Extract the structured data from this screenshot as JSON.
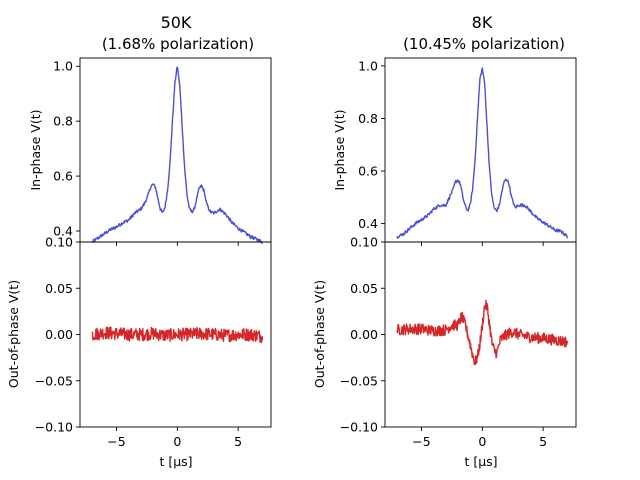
{
  "chart_data": [
    {
      "type": "line",
      "title": "50K",
      "subtitle": "(1.68% polarization)",
      "xlabel": "t [μs]",
      "xlim": [
        -8,
        7.7
      ],
      "xticks": [
        -5,
        0,
        5
      ],
      "xtick_labels": [
        "−5",
        "0",
        "5"
      ],
      "grid": false,
      "panels": [
        {
          "ylabel": "In-phase V(t)",
          "ylim": [
            0.36,
            1.03
          ],
          "yticks": [
            0.4,
            0.6,
            0.8,
            1.0
          ],
          "ytick_labels": [
            "0.4",
            "0.6",
            "0.8",
            "1.0"
          ],
          "color": "#4a4fd8",
          "series": [
            {
              "x": [
                -7.0,
                -6.5,
                -6.0,
                -5.5,
                -5.0,
                -4.5,
                -4.0,
                -3.5,
                -3.0,
                -2.7,
                -2.4,
                -2.2,
                -2.0,
                -1.8,
                -1.6,
                -1.4,
                -1.2,
                -1.0,
                -0.8,
                -0.6,
                -0.4,
                -0.2,
                0.0,
                0.2,
                0.4,
                0.6,
                0.8,
                1.0,
                1.2,
                1.4,
                1.6,
                1.8,
                2.0,
                2.2,
                2.4,
                2.7,
                3.0,
                3.5,
                4.0,
                4.5,
                5.0,
                5.5,
                6.0,
                6.5,
                7.0
              ],
              "y": [
                0.36,
                0.375,
                0.39,
                0.405,
                0.415,
                0.43,
                0.44,
                0.465,
                0.48,
                0.5,
                0.53,
                0.56,
                0.57,
                0.56,
                0.52,
                0.48,
                0.465,
                0.49,
                0.55,
                0.65,
                0.8,
                0.94,
                1.0,
                0.93,
                0.78,
                0.63,
                0.53,
                0.48,
                0.47,
                0.48,
                0.52,
                0.555,
                0.565,
                0.545,
                0.5,
                0.47,
                0.465,
                0.48,
                0.46,
                0.43,
                0.41,
                0.395,
                0.38,
                0.37,
                0.36
              ]
            }
          ]
        },
        {
          "ylabel": "Out-of-phase V(t)",
          "ylim": [
            -0.1,
            0.1
          ],
          "yticks": [
            -0.1,
            -0.05,
            0.0,
            0.05,
            0.1
          ],
          "ytick_labels": [
            "−0.10",
            "−0.05",
            "0.00",
            "0.05",
            "0.10"
          ],
          "color": "#d62728",
          "series": [
            {
              "x": [
                -7.0,
                -6.0,
                -5.0,
                -4.0,
                -3.0,
                -2.0,
                -1.0,
                0.0,
                1.0,
                2.0,
                3.0,
                4.0,
                5.0,
                6.0,
                7.0
              ],
              "y": [
                0.0,
                0.002,
                0.001,
                0.0,
                0.0,
                0.001,
                -0.001,
                0.0,
                0.0,
                0.001,
                0.0,
                -0.001,
                0.0,
                0.0,
                -0.002
              ],
              "noise": 0.007
            }
          ]
        }
      ]
    },
    {
      "type": "line",
      "title": "8K",
      "subtitle": "(10.45% polarization)",
      "xlabel": "t [μs]",
      "xlim": [
        -8,
        7.7
      ],
      "xticks": [
        -5,
        0,
        5
      ],
      "xtick_labels": [
        "−5",
        "0",
        "5"
      ],
      "grid": false,
      "panels": [
        {
          "ylabel": "In-phase V(t)",
          "ylim": [
            0.33,
            1.03
          ],
          "yticks": [
            0.4,
            0.6,
            0.8,
            1.0
          ],
          "ytick_labels": [
            "0.4",
            "0.6",
            "0.8",
            "1.0"
          ],
          "color": "#4a4fd8",
          "series": [
            {
              "x": [
                -7.0,
                -6.5,
                -6.0,
                -5.5,
                -5.0,
                -4.5,
                -4.0,
                -3.5,
                -3.0,
                -2.7,
                -2.4,
                -2.2,
                -2.0,
                -1.8,
                -1.6,
                -1.4,
                -1.2,
                -1.0,
                -0.8,
                -0.6,
                -0.4,
                -0.2,
                0.0,
                0.2,
                0.4,
                0.6,
                0.8,
                1.0,
                1.2,
                1.4,
                1.6,
                1.8,
                2.0,
                2.2,
                2.4,
                2.7,
                3.0,
                3.5,
                4.0,
                4.5,
                5.0,
                5.5,
                6.0,
                6.5,
                7.0
              ],
              "y": [
                0.35,
                0.36,
                0.38,
                0.4,
                0.415,
                0.43,
                0.455,
                0.47,
                0.47,
                0.5,
                0.53,
                0.56,
                0.565,
                0.55,
                0.5,
                0.465,
                0.45,
                0.47,
                0.53,
                0.64,
                0.8,
                0.95,
                0.99,
                0.93,
                0.76,
                0.6,
                0.5,
                0.455,
                0.45,
                0.47,
                0.52,
                0.56,
                0.57,
                0.55,
                0.5,
                0.46,
                0.47,
                0.47,
                0.445,
                0.42,
                0.405,
                0.39,
                0.375,
                0.37,
                0.35
              ]
            }
          ]
        },
        {
          "ylabel": "Out-of-phase V(t)",
          "ylim": [
            -0.1,
            0.1
          ],
          "yticks": [
            -0.1,
            -0.05,
            0.0,
            0.05,
            0.1
          ],
          "ytick_labels": [
            "−0.10",
            "−0.05",
            "0.00",
            "0.05",
            "0.10"
          ],
          "color": "#d62728",
          "series": [
            {
              "x": [
                -7.0,
                -6.0,
                -5.0,
                -4.0,
                -3.0,
                -2.5,
                -2.0,
                -1.7,
                -1.4,
                -1.2,
                -1.0,
                -0.8,
                -0.6,
                -0.4,
                -0.2,
                0.0,
                0.2,
                0.4,
                0.6,
                0.8,
                1.0,
                1.2,
                1.5,
                2.0,
                2.5,
                3.0,
                4.0,
                5.0,
                6.0,
                7.0
              ],
              "y": [
                0.005,
                0.006,
                0.006,
                0.004,
                0.005,
                0.01,
                0.01,
                0.02,
                0.01,
                0.0,
                -0.01,
                -0.022,
                -0.03,
                -0.025,
                -0.01,
                0.01,
                0.032,
                0.03,
                0.01,
                -0.01,
                -0.018,
                -0.02,
                -0.005,
                0.0,
                0.003,
                0.0,
                -0.003,
                -0.004,
                -0.006,
                -0.008
              ],
              "noise": 0.006
            }
          ]
        }
      ]
    }
  ]
}
